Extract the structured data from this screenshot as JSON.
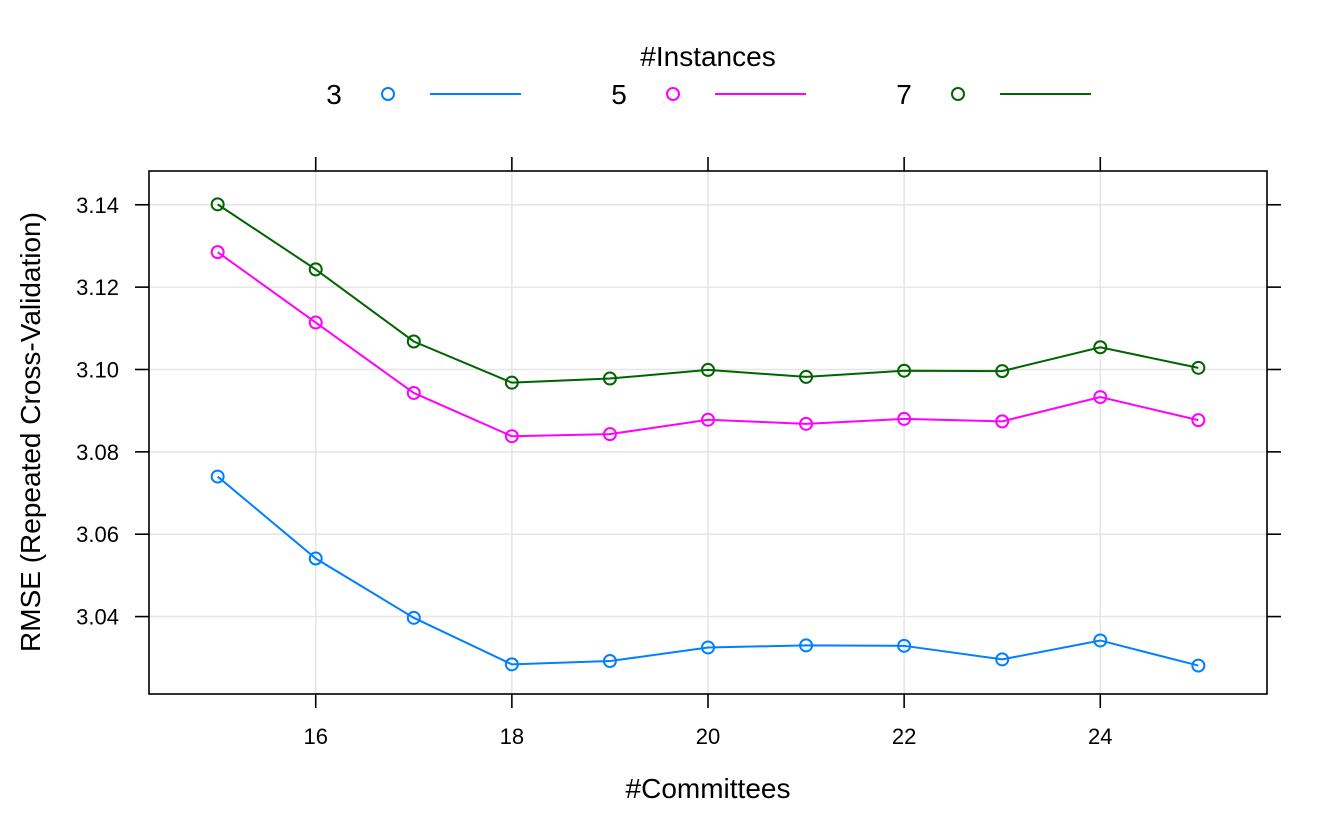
{
  "chart_data": {
    "type": "line",
    "title": "",
    "xlabel": "#Committees",
    "ylabel": "RMSE (Repeated Cross-Validation)",
    "legend": {
      "title": "#Instances",
      "placement": "top"
    },
    "x": [
      15,
      16,
      17,
      18,
      19,
      20,
      21,
      22,
      23,
      24,
      25
    ],
    "xlim": [
      14.3,
      25.7
    ],
    "ylim": [
      3.0212,
      3.1482
    ],
    "xticks": [
      16,
      18,
      20,
      22,
      24
    ],
    "yticks": [
      3.04,
      3.06,
      3.08,
      3.1,
      3.12,
      3.14
    ],
    "xtick_labels": [
      "16",
      "18",
      "20",
      "22",
      "24"
    ],
    "ytick_labels": [
      "3.04",
      "3.06",
      "3.08",
      "3.10",
      "3.12",
      "3.14"
    ],
    "grid": true,
    "series": [
      {
        "name": "3",
        "color": "#0080ff",
        "values": [
          3.074,
          3.0541,
          3.0397,
          3.0284,
          3.0292,
          3.0325,
          3.033,
          3.0329,
          3.0296,
          3.0342,
          3.0281
        ]
      },
      {
        "name": "5",
        "color": "#ff00ff",
        "values": [
          3.1285,
          3.1114,
          3.0943,
          3.0838,
          3.0843,
          3.0878,
          3.0868,
          3.088,
          3.0874,
          3.0933,
          3.0877
        ]
      },
      {
        "name": "7",
        "color": "#006400",
        "values": [
          3.1401,
          3.1243,
          3.1068,
          3.0968,
          3.0978,
          3.0999,
          3.0982,
          3.0997,
          3.0996,
          3.1054,
          3.1004
        ]
      }
    ]
  }
}
